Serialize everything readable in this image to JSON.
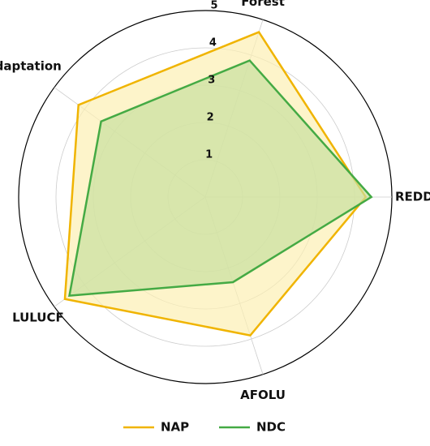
{
  "chart_data": {
    "type": "radar",
    "categories": [
      "REDD+",
      "Forest",
      "Adaptation",
      "LULUCF",
      "AFOLU"
    ],
    "series": [
      {
        "name": "NAP",
        "color": "#f0b400",
        "fill": "#fcefb4",
        "values": [
          4.3,
          4.65,
          4.2,
          4.65,
          3.9
        ]
      },
      {
        "name": "NDC",
        "color": "#44aa44",
        "fill": "#c8dfa0",
        "values": [
          4.45,
          3.85,
          3.45,
          4.5,
          2.4
        ]
      }
    ],
    "rlim": [
      0,
      5
    ],
    "rticks": [
      1,
      2,
      3,
      4,
      5
    ],
    "grid": true
  }
}
